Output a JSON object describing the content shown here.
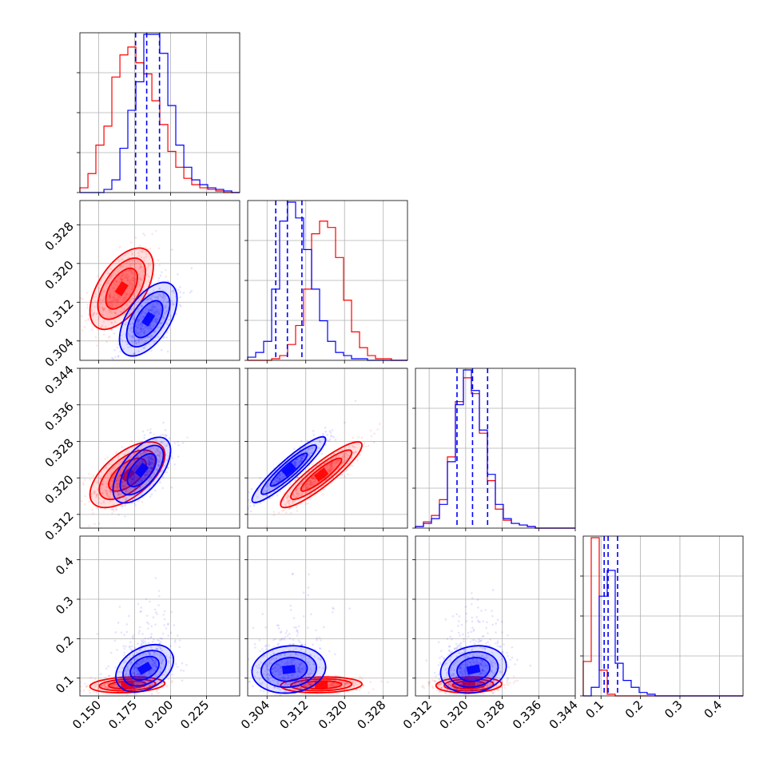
{
  "chart_data": {
    "type": "corner",
    "parameters": 4,
    "grid": true,
    "series": [
      {
        "color": "#ff0000"
      },
      {
        "color": "#0000ff"
      }
    ],
    "axes": [
      {
        "range": [
          0.137,
          0.248
        ],
        "ticks": [
          0.15,
          0.175,
          0.2,
          0.225
        ],
        "tick_labels": [
          "0.150",
          "0.175",
          "0.200",
          "0.225"
        ]
      },
      {
        "range": [
          0.3,
          0.333
        ],
        "ticks": [
          0.304,
          0.312,
          0.32,
          0.328
        ],
        "tick_labels": [
          "0.304",
          "0.312",
          "0.320",
          "0.328"
        ]
      },
      {
        "range": [
          0.309,
          0.344
        ],
        "ticks": [
          0.312,
          0.32,
          0.328,
          0.336,
          0.344
        ],
        "tick_labels": [
          "0.312",
          "0.320",
          "0.328",
          "0.336",
          "0.344"
        ]
      },
      {
        "range": [
          0.055,
          0.46
        ],
        "ticks": [
          0.1,
          0.2,
          0.3,
          0.4
        ],
        "tick_labels": [
          "0.1",
          "0.2",
          "0.3",
          "0.4"
        ]
      }
    ],
    "histograms": [
      {
        "bin_edges": [
          0.137,
          0.1426,
          0.1481,
          0.1537,
          0.1592,
          0.1648,
          0.1703,
          0.1759,
          0.1814,
          0.187,
          0.1925,
          0.1981,
          0.2036,
          0.2092,
          0.2147,
          0.2203,
          0.2258,
          0.2314,
          0.2369,
          0.2425,
          0.248
        ],
        "red": [
          3,
          12,
          30,
          42,
          73,
          87,
          92,
          82,
          75,
          58,
          43,
          26,
          16,
          9,
          5,
          3,
          2,
          1,
          0,
          0
        ],
        "blue": [
          0,
          0,
          0,
          2,
          8,
          28,
          52,
          70,
          100,
          100,
          88,
          55,
          30,
          16,
          8,
          5,
          3,
          2,
          1,
          0
        ],
        "blue_quantiles": [
          0.1757,
          0.1834,
          0.1923
        ]
      },
      {
        "bin_edges": [
          0.3,
          0.30165,
          0.3033,
          0.30495,
          0.3066,
          0.30825,
          0.3099,
          0.31155,
          0.3132,
          0.31485,
          0.3165,
          0.31815,
          0.3198,
          0.32145,
          0.3231,
          0.32475,
          0.3264,
          0.32805,
          0.3297,
          0.33135,
          0.333
        ],
        "red": [
          0,
          0,
          0,
          1,
          3,
          10,
          22,
          45,
          80,
          88,
          84,
          65,
          38,
          18,
          8,
          3,
          1,
          1,
          0,
          0
        ],
        "blue": [
          2,
          5,
          12,
          45,
          88,
          100,
          90,
          70,
          45,
          25,
          12,
          5,
          3,
          1,
          1,
          0,
          0,
          0,
          0,
          0
        ],
        "blue_quantiles": [
          0.3058,
          0.3082,
          0.3112
        ]
      },
      {
        "bin_edges": [
          0.309,
          0.31075,
          0.3125,
          0.31425,
          0.316,
          0.31775,
          0.3195,
          0.32125,
          0.323,
          0.32475,
          0.3265,
          0.32825,
          0.33,
          0.33175,
          0.3335,
          0.33525,
          0.337,
          0.33875,
          0.3405,
          0.34225,
          0.344
        ],
        "red": [
          1,
          4,
          8,
          18,
          45,
          80,
          95,
          85,
          60,
          30,
          12,
          5,
          3,
          2,
          1,
          0,
          0,
          0,
          0,
          0
        ],
        "blue": [
          1,
          3,
          6,
          15,
          42,
          78,
          100,
          87,
          62,
          34,
          15,
          6,
          3,
          2,
          1,
          0,
          0,
          0,
          0,
          0
        ],
        "blue_quantiles": [
          0.3181,
          0.3215,
          0.3248
        ]
      },
      {
        "bin_edges": [
          0.055,
          0.07525,
          0.0955,
          0.11575,
          0.136,
          0.15625,
          0.1765,
          0.19675,
          0.217,
          0.23725,
          0.2575,
          0.27775,
          0.298,
          0.31825,
          0.3385,
          0.35875,
          0.379,
          0.39925,
          0.4195,
          0.43975,
          0.46
        ],
        "red": [
          20,
          92,
          15,
          1,
          0,
          0,
          0,
          0,
          0,
          0,
          0,
          0,
          0,
          0,
          0,
          0,
          0,
          0,
          0,
          0
        ],
        "blue": [
          0,
          5,
          58,
          73,
          19,
          9,
          5,
          2,
          1,
          0,
          0,
          0,
          0,
          0,
          0,
          0,
          0,
          0,
          0,
          0
        ],
        "blue_quantiles": [
          0.108,
          0.118,
          0.142
        ]
      }
    ],
    "scatter_2d": [
      {
        "x_param": 0,
        "y_param": 1,
        "red": {
          "mean": [
            0.166,
            0.3148
          ],
          "sd": [
            0.011,
            0.0042
          ],
          "rho": 0.55
        },
        "blue": {
          "mean": [
            0.1845,
            0.3085
          ],
          "sd": [
            0.01,
            0.0038
          ],
          "rho": 0.55
        }
      },
      {
        "x_param": 0,
        "y_param": 2,
        "red": {
          "mean": [
            0.17,
            0.3207
          ],
          "sd": [
            0.013,
            0.0036
          ],
          "rho": 0.6
        },
        "blue": {
          "mean": [
            0.18,
            0.3217
          ],
          "sd": [
            0.01,
            0.0036
          ],
          "rho": 0.6
        }
      },
      {
        "x_param": 1,
        "y_param": 2,
        "red": {
          "mean": [
            0.3152,
            0.3207
          ],
          "sd": [
            0.0042,
            0.0036
          ],
          "rho": 0.9
        },
        "blue": {
          "mean": [
            0.3085,
            0.3218
          ],
          "sd": [
            0.0038,
            0.0036
          ],
          "rho": 0.92
        }
      },
      {
        "x_param": 0,
        "y_param": 3,
        "red": {
          "mean": [
            0.17,
            0.083
          ],
          "sd": [
            0.013,
            0.01
          ],
          "rho": 0.2
        },
        "blue": {
          "mean": [
            0.182,
            0.125
          ],
          "sd": [
            0.01,
            0.03
          ],
          "rho": 0.35
        }
      },
      {
        "x_param": 1,
        "y_param": 3,
        "red": {
          "mean": [
            0.3152,
            0.083
          ],
          "sd": [
            0.0042,
            0.01
          ],
          "rho": 0.1
        },
        "blue": {
          "mean": [
            0.3085,
            0.122
          ],
          "sd": [
            0.0038,
            0.03
          ],
          "rho": 0.1
        }
      },
      {
        "x_param": 2,
        "y_param": 3,
        "red": {
          "mean": [
            0.3207,
            0.083
          ],
          "sd": [
            0.0036,
            0.01
          ],
          "rho": 0.1
        },
        "blue": {
          "mean": [
            0.3217,
            0.122
          ],
          "sd": [
            0.0036,
            0.03
          ],
          "rho": 0.15
        }
      }
    ],
    "title": "",
    "xlabel": "",
    "ylabel": ""
  }
}
